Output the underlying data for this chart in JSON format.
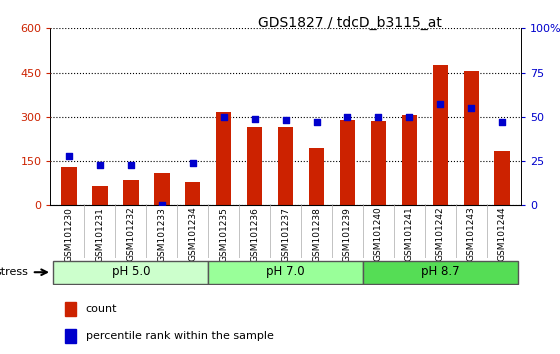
{
  "title": "GDS1827 / tdcD_b3115_at",
  "categories": [
    "GSM101230",
    "GSM101231",
    "GSM101232",
    "GSM101233",
    "GSM101234",
    "GSM101235",
    "GSM101236",
    "GSM101237",
    "GSM101238",
    "GSM101239",
    "GSM101240",
    "GSM101241",
    "GSM101242",
    "GSM101243",
    "GSM101244"
  ],
  "counts": [
    130,
    65,
    85,
    110,
    80,
    315,
    265,
    265,
    195,
    290,
    285,
    305,
    475,
    455,
    185
  ],
  "percentiles": [
    28,
    23,
    23,
    0,
    24,
    50,
    49,
    48,
    47,
    50,
    50,
    50,
    57,
    55,
    47
  ],
  "groups": [
    {
      "label": "pH 5.0",
      "start": 0,
      "end": 4,
      "color": "#ccffcc"
    },
    {
      "label": "pH 7.0",
      "start": 5,
      "end": 9,
      "color": "#99ff99"
    },
    {
      "label": "pH 8.7",
      "start": 10,
      "end": 14,
      "color": "#55dd55"
    }
  ],
  "stress_label": "stress",
  "bar_color": "#cc2200",
  "dot_color": "#0000cc",
  "ylim_left": [
    0,
    600
  ],
  "ylim_right": [
    0,
    100
  ],
  "yticks_left": [
    0,
    150,
    300,
    450,
    600
  ],
  "yticks_right": [
    0,
    25,
    50,
    75,
    100
  ],
  "grid_color": "black",
  "bg_color": "#d8d8d8",
  "plot_area_color": "#ffffff"
}
